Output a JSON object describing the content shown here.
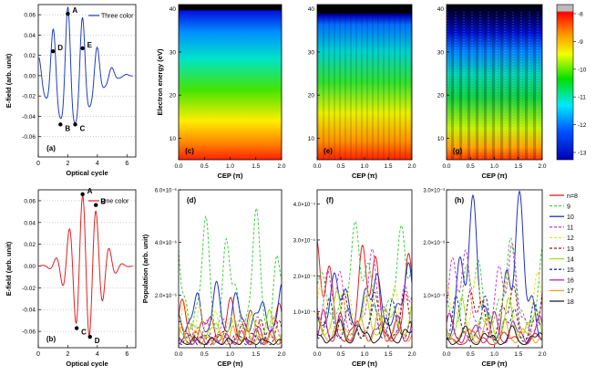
{
  "chart_data": [
    {
      "id": "a",
      "type": "line",
      "panel_label": "(a)",
      "xlabel": "Optical cycle",
      "ylabel": "E-field (arb. unit)",
      "xlim": [
        0,
        6.6
      ],
      "ylim": [
        -0.08,
        0.07
      ],
      "xticks": [
        0,
        2,
        4,
        6
      ],
      "xtick_labels": [
        "0",
        "2",
        "4",
        "6"
      ],
      "yticks": [
        0.06,
        0.04,
        0.02,
        0.0,
        -0.02,
        -0.04,
        -0.06
      ],
      "ytick_labels": [
        "0.06",
        "0.04",
        "0.02",
        "0.00",
        "-0.02",
        "-0.04",
        "-0.06"
      ],
      "series": [
        {
          "name": "Three color",
          "color": "#1f3fbf"
        }
      ],
      "grid": "horizontal dotted",
      "points": [
        {
          "label": "A",
          "x": 2.0,
          "y": 0.061
        },
        {
          "label": "B",
          "x": 1.5,
          "y": -0.048
        },
        {
          "label": "C",
          "x": 2.5,
          "y": -0.048
        },
        {
          "label": "D",
          "x": 1.0,
          "y": 0.024
        },
        {
          "label": "E",
          "x": 3.0,
          "y": 0.027
        }
      ]
    },
    {
      "id": "b",
      "type": "line",
      "panel_label": "(b)",
      "xlabel": "Optical cycle",
      "ylabel": "E-field (arb. unit)",
      "xlim": [
        0,
        6.6
      ],
      "ylim": [
        -0.075,
        0.07
      ],
      "xticks": [
        0,
        2,
        4,
        6
      ],
      "xtick_labels": [
        "0",
        "2",
        "4",
        "6"
      ],
      "yticks": [
        0.06,
        0.04,
        0.02,
        0.0,
        -0.02,
        -0.04,
        -0.06
      ],
      "ytick_labels": [
        "0.06",
        "0.04",
        "0.02",
        "0.00",
        "-0.02",
        "-0.04",
        "-0.06"
      ],
      "series": [
        {
          "name": "One color",
          "color": "#e02020"
        }
      ],
      "grid": "horizontal dotted",
      "points": [
        {
          "label": "A",
          "x": 3.0,
          "y": 0.066
        },
        {
          "label": "B",
          "x": 3.9,
          "y": 0.056
        },
        {
          "label": "C",
          "x": 2.6,
          "y": -0.057
        },
        {
          "label": "D",
          "x": 3.5,
          "y": -0.065
        }
      ]
    },
    {
      "id": "c",
      "type": "heatmap",
      "panel_label": "(c)",
      "xlabel": "CEP (π)",
      "ylabel": "Electron energy (eV)",
      "xlim": [
        0,
        2.0
      ],
      "ylim": [
        5,
        41
      ],
      "xtick_labels": [
        "0.0",
        "0.5",
        "1.0",
        "1.5",
        "2.0"
      ],
      "ytick_labels": [
        "10",
        "20",
        "30",
        "40"
      ]
    },
    {
      "id": "e",
      "type": "heatmap",
      "panel_label": "(e)",
      "xlabel": "CEP (π)",
      "xlim": [
        0,
        2.0
      ],
      "ylim": [
        5,
        41
      ],
      "xtick_labels": [
        "0.0",
        "0.5",
        "1.0",
        "1.5",
        "2.0"
      ],
      "ytick_labels": [
        "10",
        "20",
        "30",
        "40"
      ]
    },
    {
      "id": "g",
      "type": "heatmap",
      "panel_label": "(g)",
      "xlabel": "CEP (π)",
      "xlim": [
        0,
        2.0
      ],
      "ylim": [
        5,
        41
      ],
      "xtick_labels": [
        "0.0",
        "0.5",
        "1.0",
        "1.5",
        "2.0"
      ],
      "ytick_labels": [
        "10",
        "20",
        "30",
        "40"
      ],
      "colorbar": {
        "ticks": [
          "-8",
          "-9",
          "-10",
          "-11",
          "-12",
          "-13"
        ],
        "colors": [
          "#c8c8c8",
          "#ff0000",
          "#ff8c00",
          "#ffff00",
          "#00e000",
          "#00ffff",
          "#0078ff",
          "#0000c8"
        ]
      }
    },
    {
      "id": "d",
      "type": "line",
      "panel_label": "(d)",
      "xlabel": "CEP (π)",
      "ylabel": "Population (arb. unit)",
      "xlim": [
        0,
        2.0
      ],
      "ylim": [
        0,
        6e-06
      ],
      "xtick_labels": [
        "0.0",
        "0.5",
        "1.0",
        "1.5",
        "2.0"
      ],
      "ytick_labels": [
        "6.0×10⁻⁶",
        "4.0×10⁻⁶",
        "2.0×10⁻⁶"
      ]
    },
    {
      "id": "f",
      "type": "line",
      "panel_label": "(f)",
      "xlabel": "CEP (π)",
      "xlim": [
        0,
        2.0
      ],
      "ylim": [
        0,
        0.00044
      ],
      "xtick_labels": [
        "0.0",
        "0.5",
        "1.0",
        "1.5",
        "2.0"
      ],
      "ytick_labels": [
        "4.0×10⁻⁴",
        "3.0×10⁻⁴",
        "2.0×10⁻⁴",
        "1.0×10⁻⁴"
      ]
    },
    {
      "id": "h",
      "type": "line",
      "panel_label": "(h)",
      "xlabel": "CEP (π)",
      "xlim": [
        0,
        2.0
      ],
      "ylim": [
        0,
        0.003
      ],
      "xtick_labels": [
        "0.0",
        "0.5",
        "1.0",
        "1.5",
        "2.0"
      ],
      "ytick_labels": [
        "3.0×10⁻³",
        "2.0×10⁻³",
        "1.0×10⁻³"
      ]
    }
  ],
  "legend": {
    "entries": [
      {
        "label": "n=8",
        "color": "#e02020",
        "dash": "solid"
      },
      {
        "label": "9",
        "color": "#40d040",
        "dash": "dashed"
      },
      {
        "label": "10",
        "color": "#2030c0",
        "dash": "solid"
      },
      {
        "label": "11",
        "color": "#d040d0",
        "dash": "dashed"
      },
      {
        "label": "12",
        "color": "#f0e020",
        "dash": "dashed"
      },
      {
        "label": "13",
        "color": "#8b1a1a",
        "dash": "dashed"
      },
      {
        "label": "14",
        "color": "#a0e020",
        "dash": "solid"
      },
      {
        "label": "15",
        "color": "#1e3a8a",
        "dash": "dashed"
      },
      {
        "label": "16",
        "color": "#c020a0",
        "dash": "solid"
      },
      {
        "label": "17",
        "color": "#f0a020",
        "dash": "solid"
      },
      {
        "label": "18",
        "color": "#202020",
        "dash": "solid"
      }
    ]
  }
}
